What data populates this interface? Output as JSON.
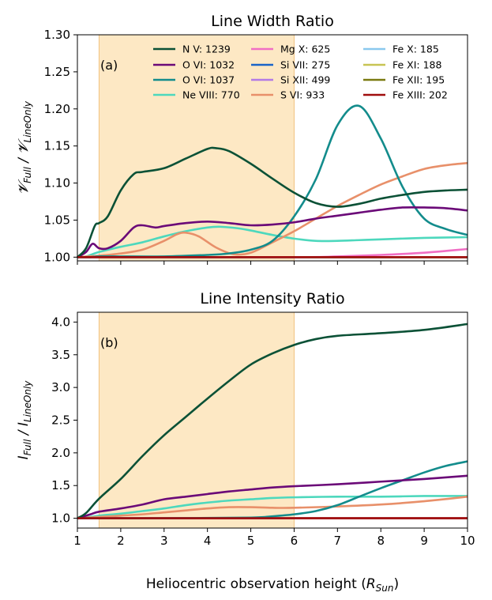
{
  "colors": {
    "N5": "#0b5136",
    "O6a": "#6b0a78",
    "O6b": "#138c8c",
    "Ne8": "#4dd8bd",
    "Mg10": "#f06ec4",
    "Si7": "#1b64c8",
    "Si12": "#b37ae6",
    "S6": "#e8906a",
    "Fe10": "#8ac8ee",
    "Fe11": "#c7c453",
    "Fe12": "#7a7a10",
    "Fe13": "#a00d0d",
    "shade": "#fde8c4",
    "shade_edge": "#f2c27e"
  },
  "xlabel_main": "Heliocentric observation height (",
  "xlabel_sym": "R",
  "xlabel_sub": "Sun",
  "xlabel_close": ")",
  "chart_data": [
    {
      "type": "line",
      "title": "Line Width Ratio",
      "panel_label": "(a)",
      "ylabel_parts": [
        "𝓥",
        "Full",
        " / 𝓥",
        "LineOnly"
      ],
      "xlim": [
        1,
        10
      ],
      "ylim": [
        0.995,
        1.3
      ],
      "xticks": [
        "1",
        "2",
        "3",
        "4",
        "5",
        "6",
        "7",
        "8",
        "9",
        "10"
      ],
      "yticks": [
        "1.00",
        "1.05",
        "1.10",
        "1.15",
        "1.20",
        "1.25",
        "1.30"
      ],
      "shaded_range": [
        1.5,
        6.0
      ],
      "legend": [
        {
          "label": "N V: 1239",
          "key": "N5"
        },
        {
          "label": "O VI: 1032",
          "key": "O6a"
        },
        {
          "label": "O VI: 1037",
          "key": "O6b"
        },
        {
          "label": "Ne VIII: 770",
          "key": "Ne8"
        },
        {
          "label": "Mg X: 625",
          "key": "Mg10"
        },
        {
          "label": "Si VII: 275",
          "key": "Si7"
        },
        {
          "label": "Si XII: 499",
          "key": "Si12"
        },
        {
          "label": "S VI: 933",
          "key": "S6"
        },
        {
          "label": "Fe X: 185",
          "key": "Fe10"
        },
        {
          "label": "Fe XI: 188",
          "key": "Fe11"
        },
        {
          "label": "Fe XII: 195",
          "key": "Fe12"
        },
        {
          "label": "Fe XIII: 202",
          "key": "Fe13"
        }
      ],
      "series": [
        {
          "key": "Si7",
          "x": [
            1,
            4,
            6,
            8,
            10
          ],
          "y": [
            1.0,
            1.0,
            1.0,
            1.0,
            1.0
          ]
        },
        {
          "key": "Si12",
          "x": [
            1,
            4,
            6,
            8,
            10
          ],
          "y": [
            1.0,
            1.0,
            1.0,
            1.0,
            1.0
          ]
        },
        {
          "key": "Fe10",
          "x": [
            1,
            4,
            6,
            8,
            10
          ],
          "y": [
            1.0,
            1.0,
            1.0,
            1.0,
            1.0
          ]
        },
        {
          "key": "Fe11",
          "x": [
            1,
            4,
            6,
            8,
            10
          ],
          "y": [
            1.0,
            1.0,
            1.0,
            1.0,
            1.0
          ]
        },
        {
          "key": "Fe12",
          "x": [
            1,
            4,
            6,
            8,
            10
          ],
          "y": [
            1.0,
            1.0,
            1.0,
            1.0,
            1.0
          ]
        },
        {
          "key": "Mg10",
          "x": [
            1,
            6,
            7,
            8,
            9,
            10
          ],
          "y": [
            1.0,
            1.0,
            1.001,
            1.003,
            1.006,
            1.011
          ]
        },
        {
          "key": "Ne8",
          "x": [
            1,
            1.2,
            1.5,
            2,
            2.5,
            3,
            3.5,
            4,
            4.3,
            4.7,
            5,
            5.5,
            6,
            6.5,
            7,
            7.5,
            8,
            9,
            10
          ],
          "y": [
            1.0,
            1.001,
            1.007,
            1.014,
            1.02,
            1.028,
            1.035,
            1.04,
            1.041,
            1.039,
            1.036,
            1.03,
            1.025,
            1.022,
            1.022,
            1.023,
            1.024,
            1.026,
            1.027
          ]
        },
        {
          "key": "S6",
          "x": [
            1,
            1.5,
            2,
            2.5,
            3,
            3.3,
            3.5,
            3.8,
            4.2,
            4.6,
            5,
            5.5,
            6,
            6.5,
            7,
            7.5,
            8,
            8.5,
            9,
            9.5,
            10
          ],
          "y": [
            1.0,
            1.002,
            1.005,
            1.01,
            1.022,
            1.031,
            1.033,
            1.028,
            1.013,
            1.004,
            1.006,
            1.02,
            1.035,
            1.052,
            1.069,
            1.084,
            1.098,
            1.109,
            1.119,
            1.124,
            1.127
          ]
        },
        {
          "key": "O6b",
          "x": [
            1,
            1.3,
            1.5,
            2,
            3,
            4,
            4.5,
            5,
            5.5,
            6,
            6.5,
            7,
            7.5,
            8,
            8.5,
            9,
            9.5,
            10
          ],
          "y": [
            1.0,
            1.0,
            1.001,
            1.001,
            1.001,
            1.003,
            1.005,
            1.01,
            1.022,
            1.055,
            1.105,
            1.178,
            1.204,
            1.16,
            1.095,
            1.052,
            1.038,
            1.03
          ]
        },
        {
          "key": "O6a",
          "x": [
            1,
            1.2,
            1.35,
            1.5,
            1.7,
            2,
            2.3,
            2.5,
            2.8,
            3,
            3.5,
            4,
            4.5,
            5,
            5.5,
            6,
            6.5,
            7,
            7.5,
            8,
            8.5,
            9,
            9.5,
            10
          ],
          "y": [
            1.0,
            1.007,
            1.018,
            1.012,
            1.012,
            1.022,
            1.04,
            1.043,
            1.04,
            1.042,
            1.046,
            1.048,
            1.046,
            1.043,
            1.044,
            1.047,
            1.052,
            1.056,
            1.06,
            1.064,
            1.067,
            1.067,
            1.066,
            1.063
          ]
        },
        {
          "key": "N5",
          "x": [
            1,
            1.2,
            1.4,
            1.5,
            1.7,
            2,
            2.3,
            2.5,
            3,
            3.5,
            4,
            4.2,
            4.5,
            5,
            5.5,
            6,
            6.5,
            7,
            7.5,
            8,
            8.5,
            9,
            9.5,
            10
          ],
          "y": [
            1.0,
            1.012,
            1.042,
            1.046,
            1.055,
            1.09,
            1.112,
            1.115,
            1.12,
            1.133,
            1.146,
            1.147,
            1.143,
            1.126,
            1.106,
            1.087,
            1.073,
            1.068,
            1.072,
            1.079,
            1.084,
            1.088,
            1.09,
            1.091
          ]
        },
        {
          "key": "Fe13",
          "x": [
            1,
            4,
            6,
            8,
            10
          ],
          "y": [
            1.0,
            1.0,
            1.0,
            1.0,
            1.0
          ]
        }
      ]
    },
    {
      "type": "line",
      "title": "Line Intensity Ratio",
      "panel_label": "(b)",
      "ylabel_parts": [
        "I",
        "Full",
        " / I",
        "LineOnly"
      ],
      "xlim": [
        1,
        10
      ],
      "ylim": [
        0.85,
        4.15
      ],
      "xticks": [
        "1",
        "2",
        "3",
        "4",
        "5",
        "6",
        "7",
        "8",
        "9",
        "10"
      ],
      "yticks": [
        "1.0",
        "1.5",
        "2.0",
        "2.5",
        "3.0",
        "3.5",
        "4.0"
      ],
      "shaded_range": [
        1.5,
        6.0
      ],
      "series": [
        {
          "key": "Si7",
          "x": [
            1,
            5,
            10
          ],
          "y": [
            1.0,
            1.0,
            1.0
          ]
        },
        {
          "key": "Si12",
          "x": [
            1,
            5,
            10
          ],
          "y": [
            1.0,
            1.0,
            1.0
          ]
        },
        {
          "key": "Fe10",
          "x": [
            1,
            5,
            10
          ],
          "y": [
            1.0,
            1.0,
            1.0
          ]
        },
        {
          "key": "Fe11",
          "x": [
            1,
            5,
            10
          ],
          "y": [
            1.0,
            1.0,
            1.0
          ]
        },
        {
          "key": "Fe12",
          "x": [
            1,
            5,
            10
          ],
          "y": [
            1.0,
            1.0,
            1.0
          ]
        },
        {
          "key": "Mg10",
          "x": [
            1,
            5,
            8,
            10
          ],
          "y": [
            1.0,
            1.0,
            1.0,
            1.0
          ]
        },
        {
          "key": "Ne8",
          "x": [
            1,
            1.3,
            1.5,
            2,
            2.5,
            3,
            3.5,
            4,
            4.5,
            5,
            5.5,
            6,
            7,
            8,
            9,
            10
          ],
          "y": [
            1.0,
            1.02,
            1.04,
            1.07,
            1.11,
            1.15,
            1.2,
            1.24,
            1.27,
            1.29,
            1.31,
            1.32,
            1.33,
            1.33,
            1.34,
            1.34
          ]
        },
        {
          "key": "S6",
          "x": [
            1,
            1.5,
            2,
            2.5,
            3,
            3.5,
            4,
            4.5,
            5,
            5.5,
            6,
            7,
            8,
            9,
            10
          ],
          "y": [
            1.0,
            1.02,
            1.04,
            1.06,
            1.09,
            1.12,
            1.15,
            1.17,
            1.17,
            1.16,
            1.16,
            1.18,
            1.21,
            1.26,
            1.33
          ]
        },
        {
          "key": "O6b",
          "x": [
            1,
            3,
            5,
            5.5,
            6,
            6.5,
            7,
            7.5,
            8,
            8.5,
            9,
            9.5,
            10
          ],
          "y": [
            1.0,
            1.0,
            1.01,
            1.03,
            1.06,
            1.11,
            1.2,
            1.33,
            1.46,
            1.58,
            1.7,
            1.8,
            1.87
          ]
        },
        {
          "key": "O6a",
          "x": [
            1,
            1.3,
            1.5,
            2,
            2.5,
            3,
            3.5,
            4,
            4.5,
            5,
            5.5,
            6,
            7,
            8,
            9,
            10
          ],
          "y": [
            1.0,
            1.06,
            1.1,
            1.15,
            1.21,
            1.29,
            1.33,
            1.37,
            1.41,
            1.44,
            1.47,
            1.49,
            1.52,
            1.56,
            1.6,
            1.65
          ]
        },
        {
          "key": "N5",
          "x": [
            1,
            1.2,
            1.5,
            2,
            2.5,
            3,
            3.5,
            4,
            4.5,
            5,
            5.5,
            6,
            6.5,
            7,
            8,
            9,
            10
          ],
          "y": [
            1.0,
            1.08,
            1.3,
            1.6,
            1.95,
            2.27,
            2.55,
            2.83,
            3.1,
            3.35,
            3.52,
            3.65,
            3.74,
            3.79,
            3.83,
            3.88,
            3.97
          ]
        },
        {
          "key": "Fe13",
          "x": [
            1,
            5,
            10
          ],
          "y": [
            1.0,
            1.0,
            1.0
          ]
        }
      ]
    }
  ]
}
